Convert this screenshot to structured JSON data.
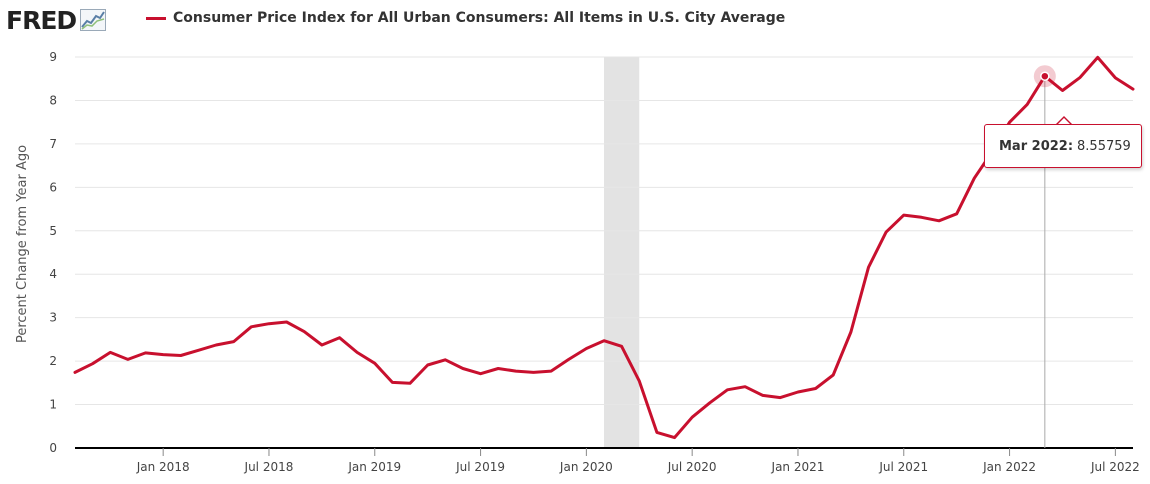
{
  "header": {
    "logo_text": "FRED",
    "logo_icon": "fred-graph-icon",
    "series_title": "Consumer Price Index for All Urban Consumers: All Items in U.S. City Average"
  },
  "colors": {
    "series": "#c8102e",
    "recession": "#e3e3e3",
    "grid": "#e6e6e6",
    "axis": "#000000"
  },
  "tooltip": {
    "date": "Mar 2022:",
    "value": "8.55759"
  },
  "chart_data": {
    "type": "line",
    "ylabel": "Percent Change from Year Ago",
    "ylim": [
      0,
      9
    ],
    "yticks": [
      "0",
      "1",
      "2",
      "3",
      "4",
      "5",
      "6",
      "7",
      "8",
      "9"
    ],
    "xticks": [
      {
        "date": "2018-01",
        "label": "Jan 2018"
      },
      {
        "date": "2018-07",
        "label": "Jul 2018"
      },
      {
        "date": "2019-01",
        "label": "Jan 2019"
      },
      {
        "date": "2019-07",
        "label": "Jul 2019"
      },
      {
        "date": "2020-01",
        "label": "Jan 2020"
      },
      {
        "date": "2020-07",
        "label": "Jul 2020"
      },
      {
        "date": "2021-01",
        "label": "Jan 2021"
      },
      {
        "date": "2021-07",
        "label": "Jul 2021"
      },
      {
        "date": "2022-01",
        "label": "Jan 2022"
      },
      {
        "date": "2022-07",
        "label": "Jul 2022"
      }
    ],
    "xlim": [
      "2017-08",
      "2022-08"
    ],
    "recession": {
      "start": "2020-02",
      "end": "2020-04"
    },
    "grid": true,
    "highlight": {
      "date": "2022-03",
      "value": 8.55759
    },
    "series": [
      {
        "x": [
          "2017-08",
          "2017-09",
          "2017-10",
          "2017-11",
          "2017-12",
          "2018-01",
          "2018-02",
          "2018-03",
          "2018-04",
          "2018-05",
          "2018-06",
          "2018-07",
          "2018-08",
          "2018-09",
          "2018-10",
          "2018-11",
          "2018-12",
          "2019-01",
          "2019-02",
          "2019-03",
          "2019-04",
          "2019-05",
          "2019-06",
          "2019-07",
          "2019-08",
          "2019-09",
          "2019-10",
          "2019-11",
          "2019-12",
          "2020-01",
          "2020-02",
          "2020-03",
          "2020-04",
          "2020-05",
          "2020-06",
          "2020-07",
          "2020-08",
          "2020-09",
          "2020-10",
          "2020-11",
          "2020-12",
          "2021-01",
          "2021-02",
          "2021-03",
          "2021-04",
          "2021-05",
          "2021-06",
          "2021-07",
          "2021-08",
          "2021-09",
          "2021-10",
          "2021-11",
          "2021-12",
          "2022-01",
          "2022-02",
          "2022-03",
          "2022-04",
          "2022-05",
          "2022-06",
          "2022-07",
          "2022-08"
        ],
        "values": [
          1.74,
          1.94,
          2.2,
          2.04,
          2.19,
          2.15,
          2.13,
          2.25,
          2.37,
          2.45,
          2.79,
          2.86,
          2.9,
          2.68,
          2.37,
          2.54,
          2.2,
          1.95,
          1.51,
          1.49,
          1.91,
          2.03,
          1.83,
          1.71,
          1.83,
          1.77,
          1.74,
          1.77,
          2.04,
          2.29,
          2.47,
          2.34,
          1.54,
          0.36,
          0.24,
          0.71,
          1.04,
          1.34,
          1.41,
          1.21,
          1.16,
          1.29,
          1.37,
          1.68,
          2.67,
          4.16,
          4.97,
          5.36,
          5.31,
          5.23,
          5.39,
          6.21,
          6.81,
          7.5,
          7.91,
          8.55759,
          8.23,
          8.53,
          8.99,
          8.52,
          8.26
        ]
      }
    ]
  }
}
